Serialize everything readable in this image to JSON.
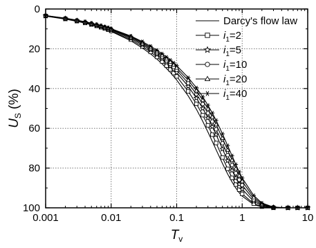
{
  "chart_data": {
    "type": "line",
    "xscale": "log",
    "xlim": [
      0.001,
      10
    ],
    "ylim": [
      0,
      100
    ],
    "y_inverted": true,
    "grid": true,
    "legend_position": "top-right",
    "xlabel": {
      "main": "T",
      "sub": "v"
    },
    "ylabel": {
      "main": "U",
      "sub": "S",
      "unit": "(%)"
    },
    "x_ticks": [
      "0.001",
      "0.01",
      "0.1",
      "1",
      "10"
    ],
    "y_ticks": [
      "0",
      "20",
      "40",
      "60",
      "80",
      "100"
    ],
    "x": [
      0.001,
      0.002,
      0.003,
      0.004,
      0.005,
      0.006,
      0.007,
      0.008,
      0.009,
      0.01,
      0.02,
      0.03,
      0.04,
      0.05,
      0.06,
      0.07,
      0.08,
      0.09,
      0.1,
      0.15,
      0.2,
      0.25,
      0.3,
      0.35,
      0.4,
      0.5,
      0.6,
      0.7,
      0.8,
      0.9,
      1,
      1.5,
      2,
      3,
      5,
      7,
      10
    ],
    "series": [
      {
        "name": "Darcy's flow law",
        "legend": {
          "main": "Darcy's flow law"
        },
        "marker": "none",
        "values": [
          3.6,
          5.1,
          6.2,
          7.1,
          8.0,
          8.7,
          9.4,
          10.1,
          10.7,
          11.3,
          16.0,
          19.6,
          22.6,
          25.2,
          27.6,
          29.9,
          31.9,
          33.9,
          35.7,
          43.7,
          50.4,
          56.5,
          61.9,
          66.6,
          70.8,
          77.7,
          83.0,
          87.0,
          90.1,
          92.4,
          94.1,
          98.4,
          99.5,
          100,
          100,
          100,
          100
        ]
      },
      {
        "name": "i1=2",
        "legend": {
          "main": "i",
          "sub": "1",
          "tail": "=2"
        },
        "marker": "square",
        "values": [
          3.5,
          5.0,
          6.1,
          7.0,
          7.8,
          8.5,
          9.2,
          9.8,
          10.4,
          11.0,
          15.4,
          18.8,
          21.6,
          24.1,
          26.4,
          28.5,
          30.4,
          32.2,
          33.9,
          41.4,
          47.7,
          53.4,
          58.5,
          63.2,
          67.4,
          74.7,
          80.4,
          84.9,
          88.3,
          90.9,
          93.0,
          97.9,
          99.4,
          100,
          100,
          100,
          100
        ]
      },
      {
        "name": "i1=5",
        "legend": {
          "main": "i",
          "sub": "1",
          "tail": "=5"
        },
        "marker": "star",
        "values": [
          3.4,
          4.9,
          5.9,
          6.8,
          7.6,
          8.3,
          8.9,
          9.5,
          10.1,
          10.6,
          14.8,
          18.0,
          20.6,
          22.9,
          25.0,
          26.9,
          28.7,
          30.4,
          32.0,
          38.9,
          44.8,
          50.0,
          54.8,
          59.2,
          63.2,
          70.4,
          76.3,
          81.2,
          85.0,
          88.1,
          90.6,
          96.8,
          98.9,
          99.9,
          100,
          100,
          100
        ]
      },
      {
        "name": "i1=10",
        "legend": {
          "main": "i",
          "sub": "1",
          "tail": "=10"
        },
        "marker": "circle",
        "values": [
          3.4,
          4.8,
          5.8,
          6.7,
          7.4,
          8.1,
          8.7,
          9.3,
          9.8,
          10.3,
          14.3,
          17.4,
          19.9,
          22.1,
          24.1,
          25.9,
          27.6,
          29.2,
          30.7,
          37.3,
          42.8,
          47.8,
          52.4,
          56.6,
          60.5,
          67.5,
          73.5,
          78.5,
          82.6,
          85.9,
          88.6,
          95.8,
          98.5,
          99.8,
          100,
          100,
          100
        ]
      },
      {
        "name": "i1=20",
        "legend": {
          "main": "i",
          "sub": "1",
          "tail": "=20"
        },
        "marker": "triangle",
        "values": [
          3.3,
          4.7,
          5.7,
          6.5,
          7.3,
          7.9,
          8.5,
          9.1,
          9.6,
          10.1,
          13.9,
          16.9,
          19.3,
          21.4,
          23.3,
          25.0,
          26.6,
          28.1,
          29.6,
          35.8,
          41.1,
          45.9,
          50.2,
          54.3,
          58.1,
          65.0,
          70.9,
          76.0,
          80.3,
          83.8,
          86.7,
          94.8,
          98.0,
          99.7,
          100,
          100,
          100
        ]
      },
      {
        "name": "i1=40",
        "legend": {
          "main": "i",
          "sub": "1",
          "tail": "=40"
        },
        "marker": "asterisk",
        "values": [
          3.3,
          4.6,
          5.6,
          6.4,
          7.1,
          7.8,
          8.4,
          8.9,
          9.4,
          9.9,
          13.6,
          16.4,
          18.7,
          20.7,
          22.5,
          24.2,
          25.7,
          27.1,
          28.5,
          34.5,
          39.6,
          44.2,
          48.4,
          52.3,
          56.0,
          62.8,
          68.7,
          73.8,
          78.2,
          81.9,
          85.0,
          93.8,
          97.6,
          99.6,
          100,
          100,
          100
        ]
      }
    ]
  }
}
